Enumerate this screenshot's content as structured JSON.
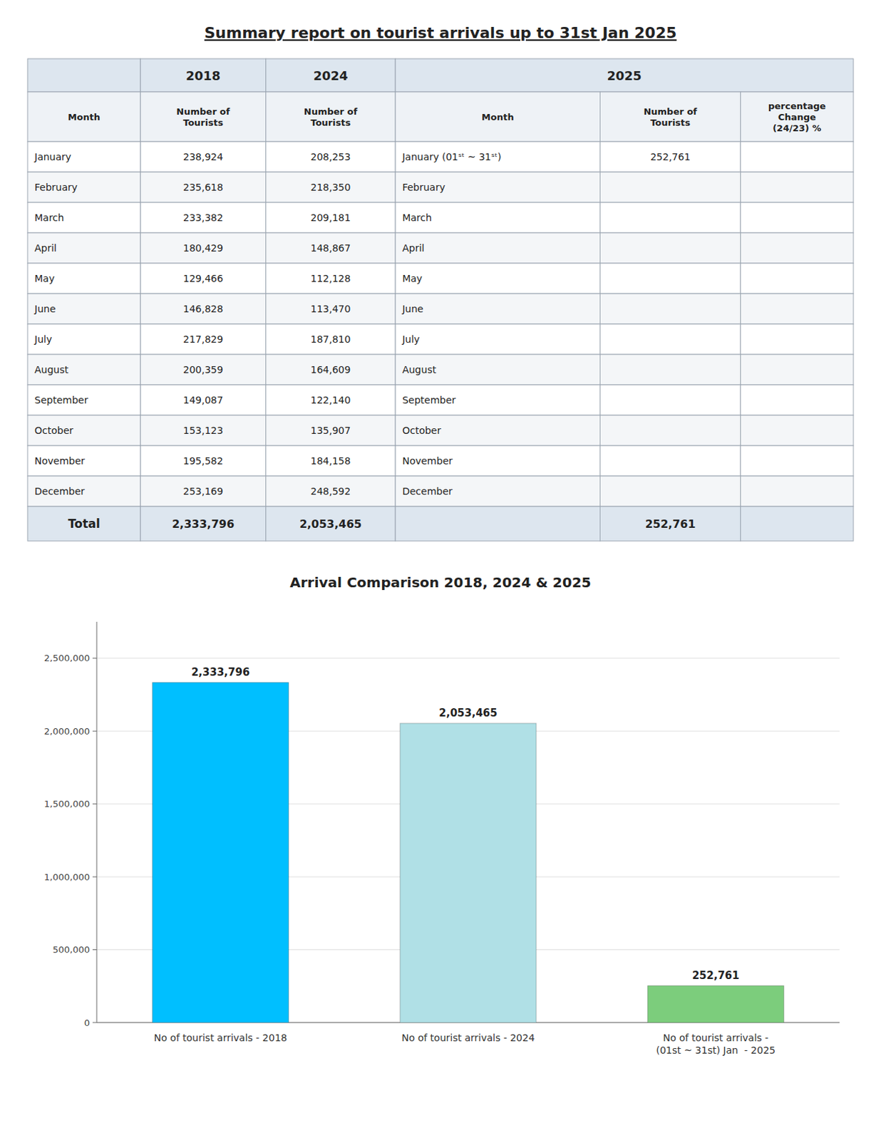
{
  "chart_data": [
    {
      "type": "table",
      "title": "Summary report on tourist arrivals up to 31st Jan 2025",
      "column_labels": [
        "Month",
        "Number of\nTourists",
        "Number of\nTourists",
        "Month",
        "Number of\nTourists",
        "percentage\nChange\n(24/23) %"
      ],
      "total_label": "Total",
      "categories": [
        "January",
        "February",
        "March",
        "April",
        "May",
        "June",
        "July",
        "August",
        "September",
        "October",
        "November",
        "December"
      ],
      "series": [
        {
          "name": "2018",
          "values": [
            238924,
            235618,
            233382,
            180429,
            129466,
            146828,
            217829,
            200359,
            149087,
            153123,
            195582,
            253169
          ],
          "value_labels": [
            "238,924",
            "235,618",
            "233,382",
            "180,429",
            "129,466",
            "146,828",
            "217,829",
            "200,359",
            "149,087",
            "153,123",
            "195,582",
            "253,169"
          ],
          "total": 2333796,
          "total_value_label": "2,333,796"
        },
        {
          "name": "2024",
          "values": [
            208253,
            218350,
            209181,
            148867,
            112128,
            113470,
            187810,
            164609,
            122140,
            135907,
            184158,
            248592
          ],
          "value_labels": [
            "208,253",
            "218,350",
            "209,181",
            "148,867",
            "112,128",
            "113,470",
            "187,810",
            "164,609",
            "122,140",
            "135,907",
            "184,158",
            "248,592"
          ],
          "total": 2053465,
          "total_value_label": "2,053,465"
        },
        {
          "name": "2025",
          "labels": [
            "January (01ˢᵗ ~ 31ˢᵗ)",
            "February",
            "March",
            "April",
            "May",
            "June",
            "July",
            "August",
            "September",
            "October",
            "November",
            "December"
          ],
          "values": [
            252761,
            null,
            null,
            null,
            null,
            null,
            null,
            null,
            null,
            null,
            null,
            null
          ],
          "value_labels": [
            "252,761",
            null,
            null,
            null,
            null,
            null,
            null,
            null,
            null,
            null,
            null,
            null
          ],
          "total": 252761,
          "total_value_label": "252,761"
        }
      ]
    },
    {
      "type": "bar",
      "title": "Arrival Comparison 2018, 2024 & 2025",
      "categories": [
        "No of tourist arrivals - 2018",
        "No of tourist arrivals - 2024",
        "No of tourist arrivals -\n(01st ~ 31st) Jan  - 2025"
      ],
      "values": [
        2333796,
        2053465,
        252761
      ],
      "value_labels": [
        "2,333,796",
        "2,053,465",
        "252,761"
      ],
      "data_labels": true,
      "colors": [
        "#00BFFF",
        "#B0E0E6",
        "#7CCD7C"
      ],
      "ylim": [
        0,
        2750000
      ],
      "yticks": [
        0,
        {
          "value": 500000,
          "label": "500,000"
        },
        {
          "value": 1000000,
          "label": "1,000,000"
        },
        {
          "value": 1500000,
          "label": "1,500,000"
        },
        {
          "value": 2000000,
          "label": "2,000,000"
        },
        {
          "value": 2500000,
          "label": "2,500,000"
        }
      ],
      "grid": true
    }
  ]
}
